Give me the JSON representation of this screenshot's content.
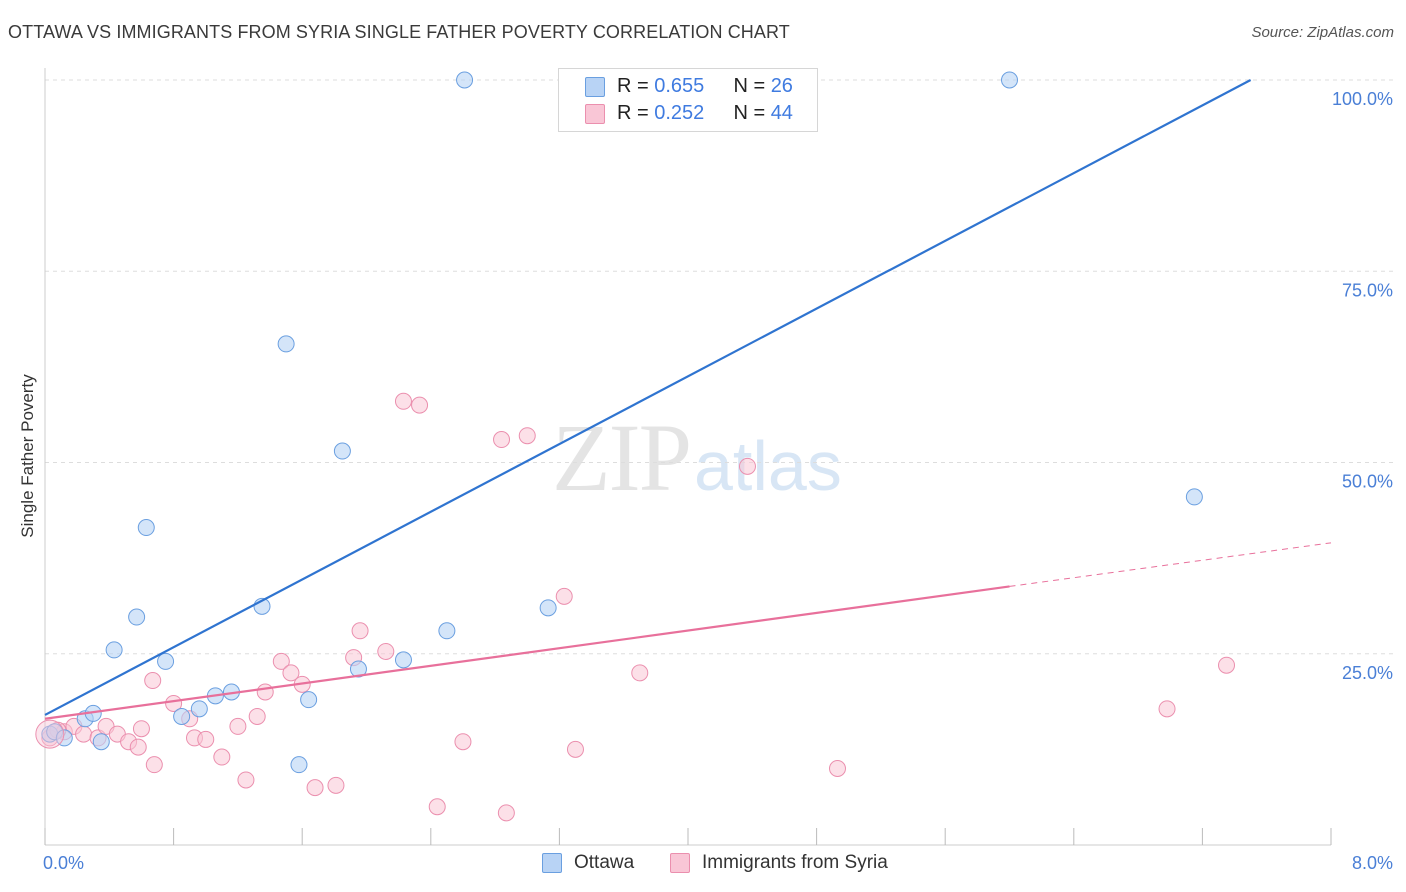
{
  "title": "OTTAWA VS IMMIGRANTS FROM SYRIA SINGLE FATHER POVERTY CORRELATION CHART",
  "source": "Source: ZipAtlas.com",
  "watermark": {
    "zip": "ZIP",
    "atlas": "atlas"
  },
  "colors": {
    "ottawa_fill": "#b8d3f5",
    "ottawa_stroke": "#6a9fe0",
    "ottawa_line": "#2f74d0",
    "syria_fill": "#f9c6d6",
    "syria_stroke": "#eb8fae",
    "syria_line": "#e8709b",
    "axis_text": "#4a7fd6",
    "grid": "#dddddd"
  },
  "legend": {
    "rows": [
      {
        "r_label": "R = ",
        "r_value": "0.655",
        "n_label": "N = ",
        "n_value": "26"
      },
      {
        "r_label": "R = ",
        "r_value": "0.252",
        "n_label": "N = ",
        "n_value": "44"
      }
    ]
  },
  "bottom_legend": {
    "ottawa": "Ottawa",
    "syria": "Immigrants from Syria"
  },
  "chart_data": {
    "type": "scatter",
    "title": "OTTAWA VS IMMIGRANTS FROM SYRIA SINGLE FATHER POVERTY CORRELATION CHART",
    "xlabel": "",
    "ylabel": "Single Father Poverty",
    "xlim": [
      0,
      8
    ],
    "ylim": [
      0,
      100
    ],
    "x_tick_labels": [
      "0.0%",
      "8.0%"
    ],
    "y_ticks": [
      25,
      50,
      75,
      100
    ],
    "y_tick_labels": [
      "25.0%",
      "50.0%",
      "75.0%",
      "100.0%"
    ],
    "grid": "horizontal dashed",
    "legend_position": "top-center",
    "series": [
      {
        "name": "Ottawa",
        "points": [
          [
            0.03,
            14.5
          ],
          [
            0.25,
            16.5
          ],
          [
            0.35,
            13.5
          ],
          [
            0.43,
            25.5
          ],
          [
            0.57,
            29.8
          ],
          [
            0.63,
            41.5
          ],
          [
            0.75,
            24.0
          ],
          [
            0.85,
            16.8
          ],
          [
            0.96,
            17.8
          ],
          [
            1.06,
            19.5
          ],
          [
            1.16,
            20.0
          ],
          [
            1.35,
            31.2
          ],
          [
            1.5,
            65.5
          ],
          [
            1.58,
            10.5
          ],
          [
            1.64,
            19.0
          ],
          [
            1.85,
            51.5
          ],
          [
            1.95,
            23.0
          ],
          [
            2.23,
            24.2
          ],
          [
            2.5,
            28.0
          ],
          [
            2.61,
            100.0
          ],
          [
            3.13,
            31.0
          ],
          [
            6.0,
            100.0
          ],
          [
            7.15,
            45.5
          ],
          [
            0.06,
            14.8
          ],
          [
            0.3,
            17.2
          ],
          [
            0.12,
            14.0
          ]
        ],
        "trend": {
          "x": [
            0,
            7.5
          ],
          "y": [
            17.0,
            100.0
          ]
        }
      },
      {
        "name": "Immigrants from Syria",
        "points": [
          [
            0.03,
            14.0
          ],
          [
            0.12,
            14.8
          ],
          [
            0.18,
            15.5
          ],
          [
            0.24,
            14.5
          ],
          [
            0.33,
            14.0
          ],
          [
            0.38,
            15.5
          ],
          [
            0.45,
            14.5
          ],
          [
            0.52,
            13.5
          ],
          [
            0.58,
            12.8
          ],
          [
            0.6,
            15.2
          ],
          [
            0.67,
            21.5
          ],
          [
            0.68,
            10.5
          ],
          [
            0.8,
            18.5
          ],
          [
            0.9,
            16.5
          ],
          [
            0.93,
            14.0
          ],
          [
            1.0,
            13.8
          ],
          [
            1.1,
            11.5
          ],
          [
            1.2,
            15.5
          ],
          [
            1.25,
            8.5
          ],
          [
            1.32,
            16.8
          ],
          [
            1.37,
            20.0
          ],
          [
            1.47,
            24.0
          ],
          [
            1.53,
            22.5
          ],
          [
            1.6,
            21.0
          ],
          [
            1.68,
            7.5
          ],
          [
            1.81,
            7.8
          ],
          [
            1.92,
            24.5
          ],
          [
            1.96,
            28.0
          ],
          [
            2.12,
            25.3
          ],
          [
            2.23,
            58.0
          ],
          [
            2.33,
            57.5
          ],
          [
            2.44,
            5.0
          ],
          [
            2.6,
            13.5
          ],
          [
            2.84,
            53.0
          ],
          [
            2.87,
            4.2
          ],
          [
            3.0,
            53.5
          ],
          [
            3.23,
            32.5
          ],
          [
            3.3,
            12.5
          ],
          [
            3.7,
            22.5
          ],
          [
            4.37,
            49.5
          ],
          [
            4.93,
            10.0
          ],
          [
            6.98,
            17.8
          ],
          [
            7.35,
            23.5
          ],
          [
            0.08,
            15.0
          ]
        ],
        "trend": {
          "x": [
            0,
            6.0
          ],
          "y": [
            16.5,
            33.8
          ]
        },
        "trend_extension": {
          "x": [
            6.0,
            8.0
          ],
          "y": [
            33.8,
            39.5
          ]
        }
      }
    ]
  }
}
